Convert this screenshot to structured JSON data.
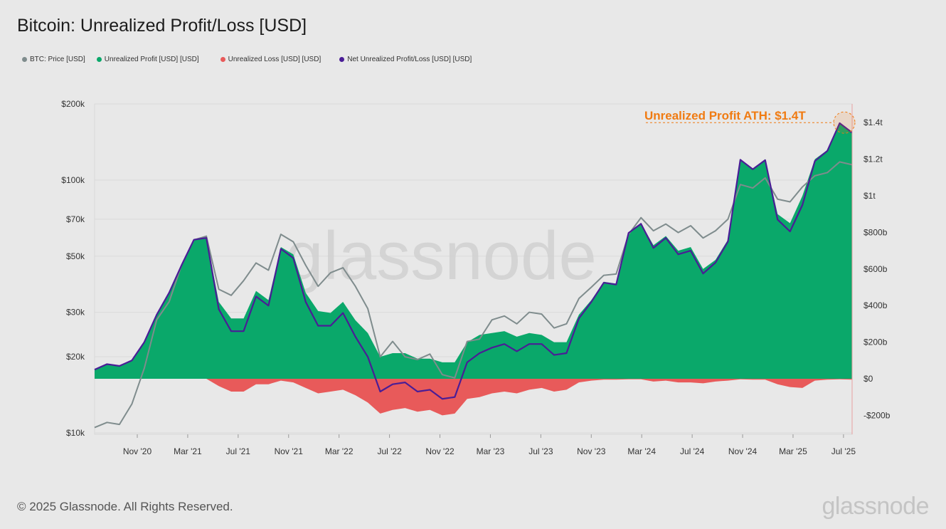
{
  "title": "Bitcoin: Unrealized Profit/Loss [USD]",
  "footer": "© 2025 Glassnode. All Rights Reserved.",
  "brand": "glassnode",
  "watermark": "glassnode",
  "legend": [
    {
      "label": "BTC: Price [USD]",
      "color": "#7f8c8d"
    },
    {
      "label": "Unrealized Profit [USD] [USD]",
      "color": "#0aa86a"
    },
    {
      "label": "Unrealized Loss [USD] [USD]",
      "color": "#e85a5a"
    },
    {
      "label": "Net Unrealized Profit/Loss [USD] [USD]",
      "color": "#4a1d96"
    }
  ],
  "annotation": {
    "text": "Unrealized Profit ATH: $1.4T",
    "color": "#f07b12",
    "value_b": 1400
  },
  "chart_data": {
    "type": "area",
    "x_ticks": [
      "Nov '20",
      "Mar '21",
      "Jul '21",
      "Nov '21",
      "Mar '22",
      "Jul '22",
      "Nov '22",
      "Mar '23",
      "Jul '23",
      "Nov '23",
      "Mar '24",
      "Jul '24",
      "Nov '24",
      "Mar '25",
      "Jul '25"
    ],
    "left_axis": {
      "scale": "log",
      "range": [
        10000,
        200000
      ],
      "ticks": [
        {
          "v": 10000,
          "label": "$10k"
        },
        {
          "v": 20000,
          "label": "$20k"
        },
        {
          "v": 30000,
          "label": "$30k"
        },
        {
          "v": 50000,
          "label": "$50k"
        },
        {
          "v": 70000,
          "label": "$70k"
        },
        {
          "v": 100000,
          "label": "$100k"
        },
        {
          "v": 200000,
          "label": "$200k"
        }
      ]
    },
    "right_axis": {
      "scale": "linear",
      "unit": "USD billions",
      "range": [
        -300,
        1550
      ],
      "ticks": [
        {
          "v": -200,
          "label": "-$200b"
        },
        {
          "v": 0,
          "label": "$0"
        },
        {
          "v": 200,
          "label": "$200b"
        },
        {
          "v": 400,
          "label": "$400b"
        },
        {
          "v": 600,
          "label": "$600b"
        },
        {
          "v": 800,
          "label": "$800b"
        },
        {
          "v": 1000,
          "label": "$1t"
        },
        {
          "v": 1200,
          "label": "$1.2t"
        },
        {
          "v": 1400,
          "label": "$1.4t"
        }
      ]
    },
    "grid": true,
    "legend_position": "top-left",
    "dates": [
      "2020-07",
      "2020-08",
      "2020-09",
      "2020-10",
      "2020-11",
      "2020-12",
      "2021-01",
      "2021-02",
      "2021-03",
      "2021-04",
      "2021-05",
      "2021-06",
      "2021-07",
      "2021-08",
      "2021-09",
      "2021-10",
      "2021-11",
      "2021-12",
      "2022-01",
      "2022-02",
      "2022-03",
      "2022-04",
      "2022-05",
      "2022-06",
      "2022-07",
      "2022-08",
      "2022-09",
      "2022-10",
      "2022-11",
      "2022-12",
      "2023-01",
      "2023-02",
      "2023-03",
      "2023-04",
      "2023-05",
      "2023-06",
      "2023-07",
      "2023-08",
      "2023-09",
      "2023-10",
      "2023-11",
      "2023-12",
      "2024-01",
      "2024-02",
      "2024-03",
      "2024-04",
      "2024-05",
      "2024-06",
      "2024-07",
      "2024-08",
      "2024-09",
      "2024-10",
      "2024-11",
      "2024-12",
      "2025-01",
      "2025-02",
      "2025-03",
      "2025-04",
      "2025-05",
      "2025-06",
      "2025-07",
      "2025-08"
    ],
    "series": [
      {
        "name": "BTC: Price [USD]",
        "axis": "left",
        "values": [
          10500,
          11000,
          10800,
          13000,
          18000,
          28000,
          33000,
          46000,
          58000,
          60000,
          37000,
          35000,
          40000,
          47000,
          44000,
          61000,
          57000,
          46000,
          38000,
          43000,
          45000,
          38000,
          31000,
          20000,
          23000,
          20000,
          19500,
          20500,
          17000,
          16500,
          23000,
          23500,
          28000,
          29000,
          27000,
          30000,
          29500,
          26000,
          27000,
          34000,
          37700,
          42000,
          42500,
          61000,
          71000,
          63000,
          67000,
          62000,
          66000,
          59000,
          63000,
          70000,
          96000,
          93000,
          102000,
          84000,
          82000,
          94000,
          104000,
          107000,
          118000,
          115000
        ]
      },
      {
        "name": "Unrealized Profit [USD] [USD]",
        "axis": "right",
        "values": [
          50,
          80,
          70,
          100,
          200,
          350,
          470,
          620,
          760,
          770,
          420,
          330,
          330,
          480,
          430,
          720,
          680,
          470,
          370,
          360,
          420,
          320,
          250,
          120,
          140,
          140,
          110,
          110,
          90,
          90,
          200,
          240,
          250,
          260,
          230,
          250,
          240,
          200,
          200,
          350,
          430,
          530,
          520,
          800,
          850,
          730,
          780,
          700,
          720,
          600,
          650,
          760,
          1200,
          1150,
          1200,
          900,
          850,
          1000,
          1200,
          1250,
          1400,
          1350
        ]
      },
      {
        "name": "Unrealized Loss [USD] [USD]",
        "axis": "right",
        "values": [
          0,
          0,
          0,
          0,
          0,
          0,
          0,
          0,
          0,
          0,
          40,
          70,
          70,
          30,
          30,
          10,
          20,
          50,
          80,
          70,
          60,
          90,
          130,
          190,
          170,
          160,
          180,
          170,
          200,
          190,
          110,
          100,
          80,
          70,
          80,
          60,
          50,
          70,
          60,
          20,
          10,
          5,
          5,
          3,
          3,
          15,
          10,
          20,
          20,
          25,
          15,
          10,
          3,
          5,
          5,
          30,
          45,
          50,
          10,
          5,
          3,
          5
        ]
      },
      {
        "name": "Net Unrealized Profit/Loss [USD] [USD]",
        "axis": "right",
        "values": [
          50,
          80,
          70,
          100,
          200,
          350,
          470,
          620,
          760,
          770,
          380,
          260,
          260,
          450,
          400,
          710,
          660,
          420,
          290,
          290,
          360,
          230,
          120,
          -70,
          -30,
          -20,
          -70,
          -60,
          -110,
          -100,
          90,
          140,
          170,
          190,
          150,
          190,
          190,
          130,
          140,
          330,
          420,
          525,
          515,
          797,
          847,
          715,
          770,
          680,
          700,
          575,
          635,
          750,
          1197,
          1145,
          1195,
          870,
          805,
          950,
          1190,
          1245,
          1397,
          1345
        ]
      }
    ]
  }
}
